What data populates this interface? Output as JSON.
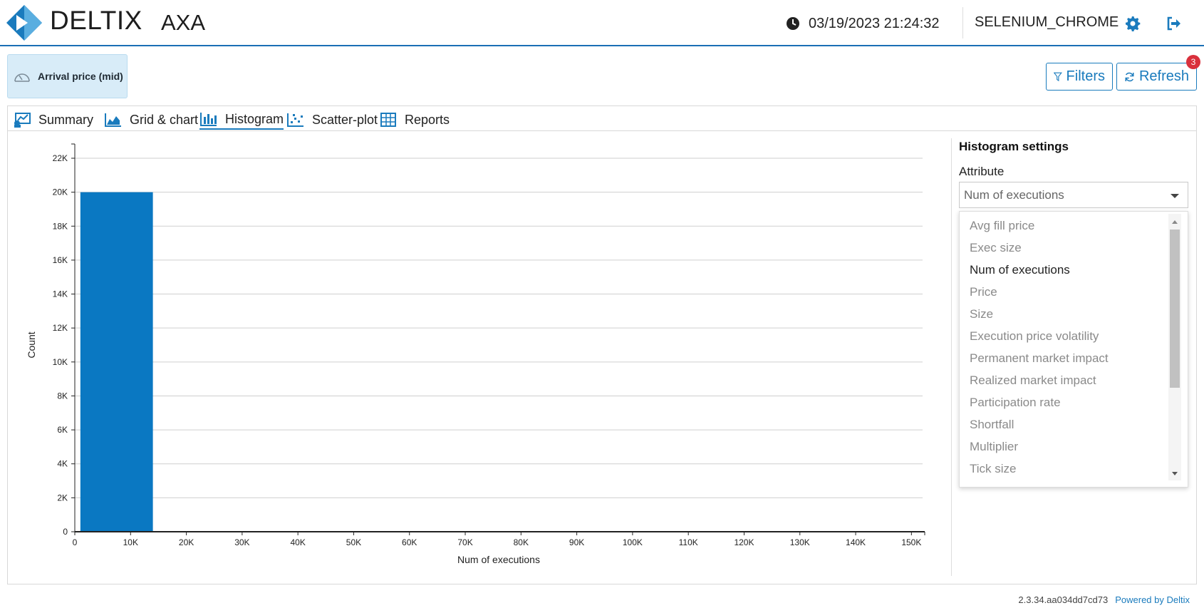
{
  "header": {
    "logo_text": "DELTIX",
    "product": "AXA",
    "datetime": "03/19/2023 21:24:32",
    "user": "SELENIUM_CHROME"
  },
  "strategy_chip": {
    "label": "Arrival price (mid)"
  },
  "toolbar": {
    "filters_label": "Filters",
    "refresh_label": "Refresh",
    "refresh_badge": "3"
  },
  "tabs": [
    {
      "label": "Summary"
    },
    {
      "label": "Grid & chart"
    },
    {
      "label": "Histogram",
      "active": true
    },
    {
      "label": "Scatter-plot"
    },
    {
      "label": "Reports"
    }
  ],
  "settings": {
    "title": "Histogram settings",
    "attribute_label": "Attribute",
    "attribute_value": "Num of executions",
    "options": [
      "Avg fill price",
      "Exec size",
      "Num of executions",
      "Price",
      "Size",
      "Execution price volatility",
      "Permanent market impact",
      "Realized market impact",
      "Participation rate",
      "Shortfall",
      "Multiplier",
      "Tick size"
    ],
    "selected_index": 2
  },
  "chart_data": {
    "type": "bar",
    "xlabel": "Num of executions",
    "ylabel": "Count",
    "xlim": [
      0,
      152000
    ],
    "ylim": [
      0,
      22000
    ],
    "x_ticks": [
      "0",
      "10K",
      "20K",
      "30K",
      "40K",
      "50K",
      "60K",
      "70K",
      "80K",
      "90K",
      "100K",
      "110K",
      "120K",
      "130K",
      "140K",
      "150K"
    ],
    "y_ticks": [
      "0",
      "2K",
      "4K",
      "6K",
      "8K",
      "10K",
      "12K",
      "14K",
      "16K",
      "18K",
      "20K",
      "22K"
    ],
    "bins": [
      {
        "x0": 1000,
        "x1": 14000,
        "count": 20000
      }
    ],
    "grid": true,
    "bar_color": "#0a78c2"
  },
  "footer": {
    "version": "2.3.34.aa034dd7cd73",
    "powered": "Powered by Deltix"
  }
}
